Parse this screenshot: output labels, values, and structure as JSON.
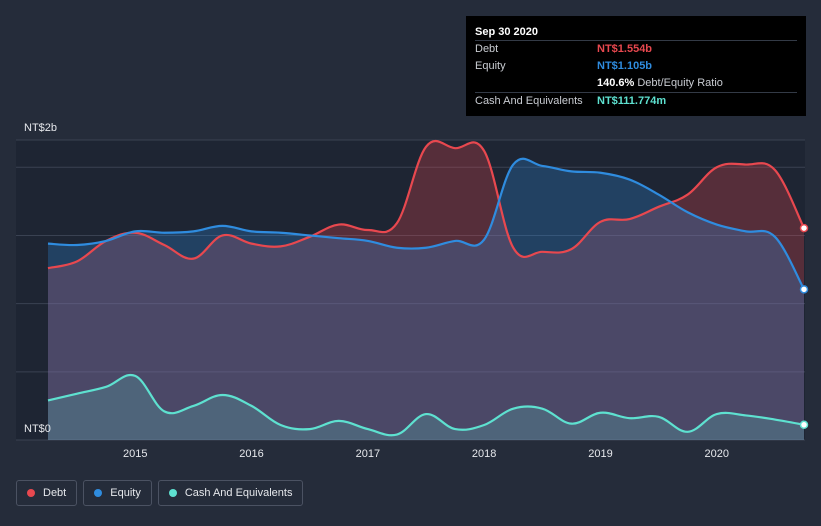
{
  "chart_data": {
    "type": "area",
    "y_axis": {
      "top_label": "NT$2b",
      "bottom_label": "NT$0",
      "ylim": [
        0,
        2.2
      ],
      "unit": "NT$ billions"
    },
    "x_ticks": [
      "2015",
      "2016",
      "2017",
      "2018",
      "2019",
      "2020"
    ],
    "x_tick_values": [
      2015.0,
      2016.0,
      2017.0,
      2018.0,
      2019.0,
      2020.0
    ],
    "xlim": [
      2014.25,
      2020.75
    ],
    "series": [
      {
        "name": "Debt",
        "color": "#e8484f",
        "points": [
          [
            2014.25,
            1.26
          ],
          [
            2014.5,
            1.31
          ],
          [
            2014.75,
            1.46
          ],
          [
            2015.0,
            1.52
          ],
          [
            2015.25,
            1.43
          ],
          [
            2015.5,
            1.33
          ],
          [
            2015.75,
            1.5
          ],
          [
            2016.0,
            1.44
          ],
          [
            2016.25,
            1.42
          ],
          [
            2016.5,
            1.49
          ],
          [
            2016.75,
            1.58
          ],
          [
            2017.0,
            1.54
          ],
          [
            2017.25,
            1.59
          ],
          [
            2017.5,
            2.15
          ],
          [
            2017.75,
            2.14
          ],
          [
            2018.0,
            2.12
          ],
          [
            2018.25,
            1.41
          ],
          [
            2018.5,
            1.38
          ],
          [
            2018.75,
            1.4
          ],
          [
            2019.0,
            1.6
          ],
          [
            2019.25,
            1.62
          ],
          [
            2019.5,
            1.71
          ],
          [
            2019.75,
            1.8
          ],
          [
            2020.0,
            2.0
          ],
          [
            2020.25,
            2.02
          ],
          [
            2020.5,
            1.98
          ],
          [
            2020.75,
            1.554
          ]
        ]
      },
      {
        "name": "Equity",
        "color": "#2f8cdf",
        "points": [
          [
            2014.25,
            1.44
          ],
          [
            2014.5,
            1.43
          ],
          [
            2014.75,
            1.46
          ],
          [
            2015.0,
            1.53
          ],
          [
            2015.25,
            1.52
          ],
          [
            2015.5,
            1.53
          ],
          [
            2015.75,
            1.57
          ],
          [
            2016.0,
            1.53
          ],
          [
            2016.25,
            1.52
          ],
          [
            2016.5,
            1.5
          ],
          [
            2016.75,
            1.48
          ],
          [
            2017.0,
            1.46
          ],
          [
            2017.25,
            1.41
          ],
          [
            2017.5,
            1.41
          ],
          [
            2017.75,
            1.46
          ],
          [
            2018.0,
            1.47
          ],
          [
            2018.25,
            2.02
          ],
          [
            2018.5,
            2.01
          ],
          [
            2018.75,
            1.97
          ],
          [
            2019.0,
            1.96
          ],
          [
            2019.25,
            1.91
          ],
          [
            2019.5,
            1.8
          ],
          [
            2019.75,
            1.67
          ],
          [
            2020.0,
            1.58
          ],
          [
            2020.25,
            1.53
          ],
          [
            2020.5,
            1.49
          ],
          [
            2020.75,
            1.105
          ]
        ]
      },
      {
        "name": "Cash And Equivalents",
        "color": "#5ee1d0",
        "points": [
          [
            2014.25,
            0.29
          ],
          [
            2014.5,
            0.34
          ],
          [
            2014.75,
            0.39
          ],
          [
            2015.0,
            0.47
          ],
          [
            2015.25,
            0.21
          ],
          [
            2015.5,
            0.25
          ],
          [
            2015.75,
            0.33
          ],
          [
            2016.0,
            0.25
          ],
          [
            2016.25,
            0.11
          ],
          [
            2016.5,
            0.08
          ],
          [
            2016.75,
            0.14
          ],
          [
            2017.0,
            0.08
          ],
          [
            2017.25,
            0.04
          ],
          [
            2017.5,
            0.19
          ],
          [
            2017.75,
            0.08
          ],
          [
            2018.0,
            0.11
          ],
          [
            2018.25,
            0.23
          ],
          [
            2018.5,
            0.23
          ],
          [
            2018.75,
            0.12
          ],
          [
            2019.0,
            0.2
          ],
          [
            2019.25,
            0.16
          ],
          [
            2019.5,
            0.17
          ],
          [
            2019.75,
            0.06
          ],
          [
            2020.0,
            0.19
          ],
          [
            2020.25,
            0.18
          ],
          [
            2020.5,
            0.15
          ],
          [
            2020.75,
            0.111774
          ]
        ]
      }
    ],
    "grid": true
  },
  "tooltip": {
    "date": "Sep 30 2020",
    "rows": [
      {
        "label": "Debt",
        "value": "NT$1.554b",
        "color": "#e8484f"
      },
      {
        "label": "Equity",
        "value": "NT$1.105b",
        "color": "#2f8cdf"
      },
      {
        "label": "",
        "value": "140.6%",
        "sub": "Debt/Equity Ratio",
        "color": "#ffffff"
      },
      {
        "label": "Cash And Equivalents",
        "value": "NT$111.774m",
        "color": "#5ee1d0"
      }
    ]
  },
  "legend": [
    {
      "label": "Debt",
      "color": "#e8484f"
    },
    {
      "label": "Equity",
      "color": "#2f8cdf"
    },
    {
      "label": "Cash And Equivalents",
      "color": "#5ee1d0"
    }
  ]
}
